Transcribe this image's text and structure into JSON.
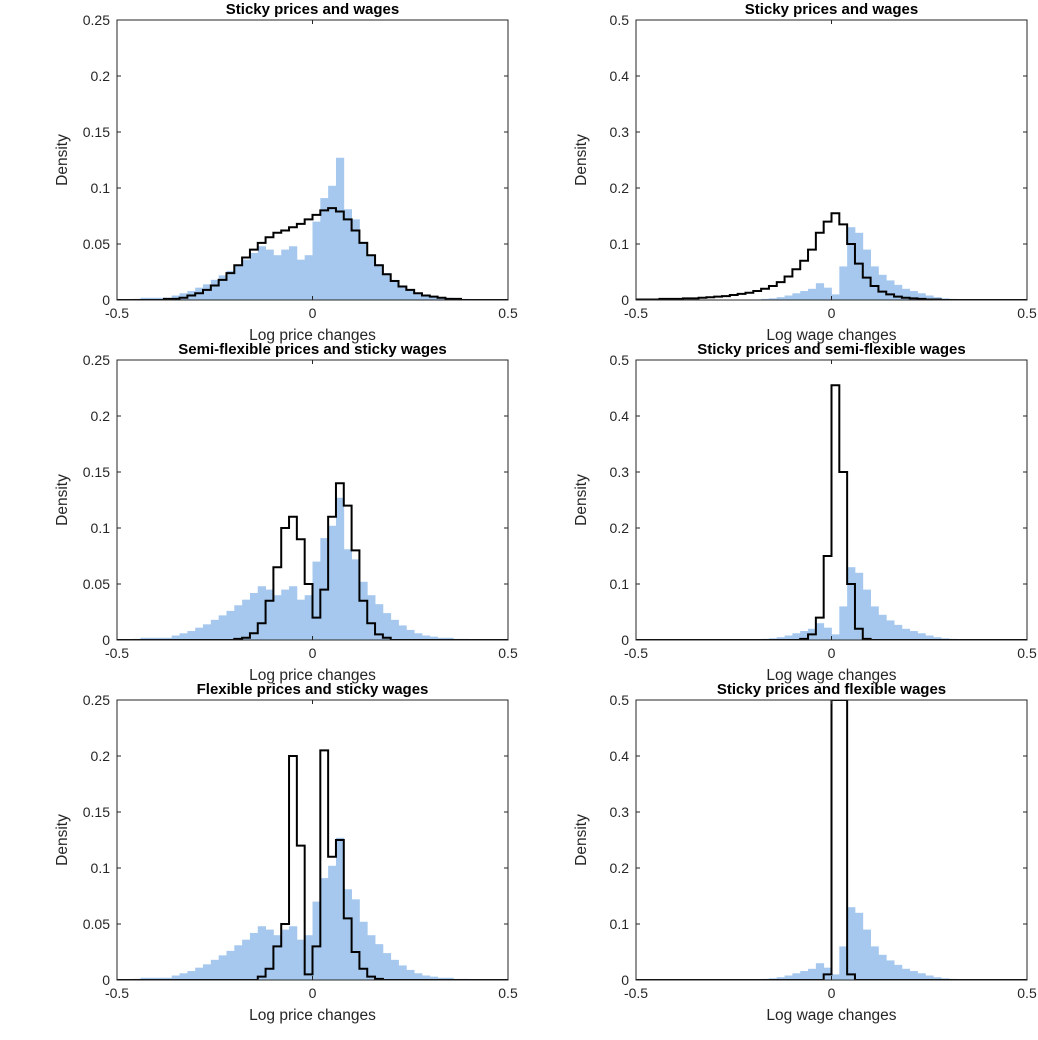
{
  "caption": "",
  "chart_data": [
    {
      "type": "histogram",
      "title": "Sticky prices and wages",
      "xlabel": "Log price changes",
      "ylabel": "Density",
      "xlim": [
        -0.5,
        0.5
      ],
      "ylim": [
        0,
        0.25
      ],
      "xticks": [
        "-0.5",
        "0",
        "0.5"
      ],
      "yticks": [
        "0",
        "0.05",
        "0.1",
        "0.15",
        "0.2",
        "0.25"
      ],
      "bin_width": 0.02,
      "bin_start": -0.5,
      "series": [
        {
          "style": "filled",
          "color": "#a6c8ee",
          "values": [
            0,
            0,
            0.001,
            0.002,
            0.002,
            0.002,
            0.002,
            0.004,
            0.006,
            0.008,
            0.011,
            0.014,
            0.018,
            0.022,
            0.026,
            0.031,
            0.036,
            0.042,
            0.048,
            0.045,
            0.04,
            0.045,
            0.048,
            0.036,
            0.04,
            0.07,
            0.091,
            0.102,
            0.127,
            0.081,
            0.072,
            0.052,
            0.04,
            0.032,
            0.024,
            0.018,
            0.013,
            0.009,
            0.006,
            0.004,
            0.003,
            0.002,
            0.002,
            0.001,
            0.001,
            0,
            0,
            0,
            0,
            0
          ]
        },
        {
          "style": "step",
          "color": "#000000",
          "values": [
            0,
            0,
            0,
            0,
            0,
            0,
            0.001,
            0.001,
            0.002,
            0.004,
            0.006,
            0.009,
            0.013,
            0.018,
            0.024,
            0.031,
            0.038,
            0.045,
            0.051,
            0.056,
            0.06,
            0.062,
            0.065,
            0.068,
            0.072,
            0.076,
            0.08,
            0.082,
            0.079,
            0.072,
            0.062,
            0.051,
            0.04,
            0.031,
            0.023,
            0.017,
            0.012,
            0.009,
            0.006,
            0.004,
            0.003,
            0.002,
            0.001,
            0.001,
            0,
            0,
            0,
            0,
            0,
            0
          ]
        }
      ]
    },
    {
      "type": "histogram",
      "title": "Sticky prices and wages",
      "xlabel": "Log wage changes",
      "ylabel": "Density",
      "xlim": [
        -0.5,
        0.5
      ],
      "ylim": [
        0,
        0.5
      ],
      "xticks": [
        "-0.5",
        "0",
        "0.5"
      ],
      "yticks": [
        "0",
        "0.1",
        "0.2",
        "0.3",
        "0.4",
        "0.5"
      ],
      "bin_width": 0.02,
      "bin_start": -0.5,
      "series": [
        {
          "style": "filled",
          "color": "#a6c8ee",
          "values": [
            0,
            0,
            0,
            0,
            0,
            0,
            0,
            0,
            0,
            0,
            0,
            0,
            0,
            0,
            0.001,
            0.001,
            0.002,
            0.003,
            0.005,
            0.008,
            0.012,
            0.016,
            0.02,
            0.03,
            0.022,
            0.01,
            0.06,
            0.13,
            0.12,
            0.09,
            0.06,
            0.045,
            0.035,
            0.027,
            0.02,
            0.016,
            0.012,
            0.008,
            0.005,
            0.003,
            0.002,
            0.001,
            0,
            0,
            0,
            0,
            0,
            0,
            0,
            0
          ]
        },
        {
          "style": "step",
          "color": "#000000",
          "values": [
            0.001,
            0.001,
            0.001,
            0.002,
            0.002,
            0.002,
            0.003,
            0.003,
            0.004,
            0.005,
            0.006,
            0.007,
            0.009,
            0.011,
            0.013,
            0.016,
            0.02,
            0.025,
            0.032,
            0.042,
            0.055,
            0.07,
            0.09,
            0.12,
            0.14,
            0.155,
            0.135,
            0.1,
            0.065,
            0.04,
            0.025,
            0.015,
            0.01,
            0.006,
            0.004,
            0.003,
            0.002,
            0.001,
            0.001,
            0,
            0,
            0,
            0,
            0,
            0,
            0,
            0,
            0,
            0,
            0
          ]
        }
      ]
    },
    {
      "type": "histogram",
      "title": "Semi-flexible prices and sticky wages",
      "xlabel": "Log price changes",
      "ylabel": "Density",
      "xlim": [
        -0.5,
        0.5
      ],
      "ylim": [
        0,
        0.25
      ],
      "xticks": [
        "-0.5",
        "0",
        "0.5"
      ],
      "yticks": [
        "0",
        "0.05",
        "0.1",
        "0.15",
        "0.2",
        "0.25"
      ],
      "bin_width": 0.02,
      "bin_start": -0.5,
      "series": [
        {
          "style": "filled",
          "color": "#a6c8ee",
          "values": [
            0,
            0,
            0.001,
            0.002,
            0.002,
            0.002,
            0.002,
            0.004,
            0.006,
            0.008,
            0.011,
            0.014,
            0.018,
            0.022,
            0.026,
            0.031,
            0.036,
            0.042,
            0.048,
            0.045,
            0.04,
            0.045,
            0.048,
            0.036,
            0.04,
            0.07,
            0.091,
            0.102,
            0.127,
            0.081,
            0.072,
            0.052,
            0.04,
            0.032,
            0.024,
            0.018,
            0.013,
            0.009,
            0.006,
            0.004,
            0.003,
            0.002,
            0.002,
            0.001,
            0.001,
            0,
            0,
            0,
            0,
            0
          ]
        },
        {
          "style": "step",
          "color": "#000000",
          "values": [
            0,
            0,
            0,
            0,
            0,
            0,
            0,
            0,
            0,
            0,
            0,
            0,
            0,
            0,
            0,
            0.001,
            0.002,
            0.006,
            0.015,
            0.035,
            0.065,
            0.1,
            0.11,
            0.09,
            0.05,
            0.02,
            0.045,
            0.11,
            0.14,
            0.12,
            0.08,
            0.035,
            0.015,
            0.005,
            0.002,
            0,
            0,
            0,
            0,
            0,
            0,
            0,
            0,
            0,
            0,
            0,
            0,
            0,
            0,
            0
          ]
        }
      ]
    },
    {
      "type": "histogram",
      "title": "Sticky prices and semi-flexible wages",
      "xlabel": "Log wage changes",
      "ylabel": "Density",
      "xlim": [
        -0.5,
        0.5
      ],
      "ylim": [
        0,
        0.5
      ],
      "xticks": [
        "-0.5",
        "0",
        "0.5"
      ],
      "yticks": [
        "0",
        "0.1",
        "0.2",
        "0.3",
        "0.4",
        "0.5"
      ],
      "bin_width": 0.02,
      "bin_start": -0.5,
      "series": [
        {
          "style": "filled",
          "color": "#a6c8ee",
          "values": [
            0,
            0,
            0,
            0,
            0,
            0,
            0,
            0,
            0,
            0,
            0,
            0,
            0,
            0,
            0.001,
            0.001,
            0.002,
            0.003,
            0.005,
            0.008,
            0.012,
            0.016,
            0.02,
            0.03,
            0.022,
            0.01,
            0.06,
            0.13,
            0.12,
            0.09,
            0.06,
            0.045,
            0.035,
            0.027,
            0.02,
            0.016,
            0.012,
            0.008,
            0.005,
            0.003,
            0.002,
            0.001,
            0,
            0,
            0,
            0,
            0,
            0,
            0,
            0
          ]
        },
        {
          "style": "step",
          "color": "#000000",
          "values": [
            0,
            0,
            0,
            0,
            0,
            0,
            0,
            0,
            0,
            0,
            0,
            0,
            0,
            0,
            0,
            0,
            0,
            0,
            0,
            0,
            0,
            0.002,
            0.01,
            0.04,
            0.15,
            0.455,
            0.3,
            0.1,
            0.02,
            0.002,
            0,
            0,
            0,
            0,
            0,
            0,
            0,
            0,
            0,
            0,
            0,
            0,
            0,
            0,
            0,
            0,
            0,
            0,
            0,
            0
          ]
        }
      ]
    },
    {
      "type": "histogram",
      "title": "Flexible prices and sticky wages",
      "xlabel": "Log price changes",
      "ylabel": "Density",
      "xlim": [
        -0.5,
        0.5
      ],
      "ylim": [
        0,
        0.25
      ],
      "xticks": [
        "-0.5",
        "0",
        "0.5"
      ],
      "yticks": [
        "0",
        "0.05",
        "0.1",
        "0.15",
        "0.2",
        "0.25"
      ],
      "bin_width": 0.02,
      "bin_start": -0.5,
      "series": [
        {
          "style": "filled",
          "color": "#a6c8ee",
          "values": [
            0,
            0,
            0.001,
            0.002,
            0.002,
            0.002,
            0.002,
            0.004,
            0.006,
            0.008,
            0.011,
            0.014,
            0.018,
            0.022,
            0.026,
            0.031,
            0.036,
            0.042,
            0.048,
            0.045,
            0.04,
            0.045,
            0.048,
            0.036,
            0.04,
            0.07,
            0.091,
            0.102,
            0.127,
            0.081,
            0.072,
            0.052,
            0.04,
            0.032,
            0.024,
            0.018,
            0.013,
            0.009,
            0.006,
            0.004,
            0.003,
            0.002,
            0.002,
            0.001,
            0.001,
            0,
            0,
            0,
            0,
            0
          ]
        },
        {
          "style": "step",
          "color": "#000000",
          "values": [
            0,
            0,
            0,
            0,
            0,
            0,
            0,
            0,
            0,
            0,
            0,
            0,
            0,
            0,
            0,
            0,
            0,
            0,
            0.003,
            0.01,
            0.03,
            0.05,
            0.2,
            0.12,
            0.005,
            0.03,
            0.205,
            0.11,
            0.125,
            0.055,
            0.025,
            0.01,
            0.003,
            0.001,
            0,
            0,
            0,
            0,
            0,
            0,
            0,
            0,
            0,
            0,
            0,
            0,
            0,
            0,
            0,
            0
          ]
        }
      ]
    },
    {
      "type": "histogram",
      "title": "Sticky prices and flexible wages",
      "xlabel": "Log wage changes",
      "ylabel": "Density",
      "xlim": [
        -0.5,
        0.5
      ],
      "ylim": [
        0,
        0.5
      ],
      "xticks": [
        "-0.5",
        "0",
        "0.5"
      ],
      "yticks": [
        "0",
        "0.1",
        "0.2",
        "0.3",
        "0.4",
        "0.5"
      ],
      "bin_width": 0.02,
      "bin_start": -0.5,
      "series": [
        {
          "style": "filled",
          "color": "#a6c8ee",
          "values": [
            0,
            0,
            0,
            0,
            0,
            0,
            0,
            0,
            0,
            0,
            0,
            0,
            0,
            0,
            0.001,
            0.001,
            0.002,
            0.003,
            0.005,
            0.008,
            0.012,
            0.016,
            0.02,
            0.03,
            0.022,
            0.01,
            0.06,
            0.13,
            0.12,
            0.09,
            0.06,
            0.045,
            0.035,
            0.027,
            0.02,
            0.016,
            0.012,
            0.008,
            0.005,
            0.003,
            0.002,
            0.001,
            0,
            0,
            0,
            0,
            0,
            0,
            0,
            0
          ]
        },
        {
          "style": "step",
          "color": "#000000",
          "values": [
            0,
            0,
            0,
            0,
            0,
            0,
            0,
            0,
            0,
            0,
            0,
            0,
            0,
            0,
            0,
            0,
            0,
            0,
            0,
            0,
            0,
            0,
            0,
            0,
            0.01,
            0.55,
            0.55,
            0.01,
            0,
            0,
            0,
            0,
            0,
            0,
            0,
            0,
            0,
            0,
            0,
            0,
            0,
            0,
            0,
            0,
            0,
            0,
            0,
            0,
            0,
            0
          ]
        }
      ]
    }
  ]
}
